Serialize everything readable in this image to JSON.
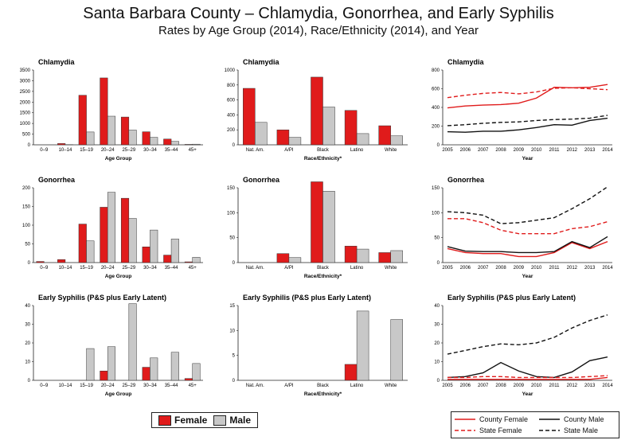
{
  "header": {
    "title": "Santa Barbara County – Chlamydia, Gonorrhea, and Early Syphilis",
    "subtitle": "Rates by Age Group (2014), Race/Ethnicity (2014), and Year"
  },
  "colors": {
    "female": "#e01b1b",
    "male": "#c8c8c8"
  },
  "legend_bars": {
    "female": "Female",
    "male": "Male"
  },
  "legend_lines": {
    "county_female": "County Female",
    "county_male": "County Male",
    "state_female": "State Female",
    "state_male": "State Male"
  },
  "chart_data": [
    {
      "type": "bar",
      "title": "Chlamydia",
      "xlabel": "Age Group",
      "ylim": [
        0,
        3500
      ],
      "yticks": [
        0,
        500,
        1000,
        1500,
        2000,
        2500,
        3000,
        3500
      ],
      "categories": [
        "0–9",
        "10–14",
        "15–19",
        "20–24",
        "25–29",
        "30–34",
        "35–44",
        "45+"
      ],
      "series": [
        {
          "name": "Female",
          "values": [
            0,
            60,
            2320,
            3130,
            1300,
            610,
            270,
            20
          ]
        },
        {
          "name": "Male",
          "values": [
            0,
            10,
            600,
            1340,
            690,
            350,
            160,
            30
          ]
        }
      ]
    },
    {
      "type": "bar",
      "title": "Chlamydia",
      "xlabel": "Race/Ethnicity*",
      "ylim": [
        0,
        1000
      ],
      "yticks": [
        0,
        200,
        400,
        600,
        800,
        1000
      ],
      "categories": [
        "Nat. Am.",
        "A/PI",
        "Black",
        "Latino",
        "White"
      ],
      "series": [
        {
          "name": "Female",
          "values": [
            755,
            200,
            905,
            460,
            255
          ]
        },
        {
          "name": "Male",
          "values": [
            300,
            100,
            505,
            150,
            120
          ]
        }
      ]
    },
    {
      "type": "line",
      "title": "Chlamydia",
      "xlabel": "Year",
      "ylim": [
        0,
        800
      ],
      "yticks": [
        0,
        200,
        400,
        600,
        800
      ],
      "x": [
        "2005",
        "2006",
        "2007",
        "2008",
        "2009",
        "2010",
        "2011",
        "2012",
        "2013",
        "2014"
      ],
      "series": [
        {
          "name": "County Female",
          "values": [
            395,
            415,
            425,
            430,
            445,
            500,
            615,
            610,
            615,
            645
          ]
        },
        {
          "name": "County Male",
          "values": [
            140,
            135,
            145,
            145,
            160,
            185,
            215,
            210,
            260,
            285
          ]
        },
        {
          "name": "State Female",
          "values": [
            505,
            530,
            550,
            560,
            545,
            565,
            605,
            610,
            600,
            590
          ]
        },
        {
          "name": "State Male",
          "values": [
            205,
            215,
            230,
            240,
            245,
            260,
            270,
            275,
            285,
            315
          ]
        }
      ]
    },
    {
      "type": "bar",
      "title": "Gonorrhea",
      "xlabel": "Age Group",
      "ylim": [
        0,
        200
      ],
      "yticks": [
        0,
        50,
        100,
        150,
        200
      ],
      "categories": [
        "0–9",
        "10–14",
        "15–19",
        "20–24",
        "25–29",
        "30–34",
        "35–44",
        "45+"
      ],
      "series": [
        {
          "name": "Female",
          "values": [
            3,
            8,
            103,
            148,
            172,
            42,
            20,
            2
          ]
        },
        {
          "name": "Male",
          "values": [
            0,
            0,
            58,
            188,
            118,
            87,
            63,
            14
          ]
        }
      ]
    },
    {
      "type": "bar",
      "title": "Gonorrhea",
      "xlabel": "Race/Ethnicity*",
      "ylim": [
        0,
        150
      ],
      "yticks": [
        0,
        50,
        100,
        150
      ],
      "categories": [
        "Nat. Am.",
        "A/PI",
        "Black",
        "Latino",
        "White"
      ],
      "series": [
        {
          "name": "Female",
          "values": [
            0,
            18,
            162,
            33,
            20
          ]
        },
        {
          "name": "Male",
          "values": [
            0,
            10,
            143,
            27,
            24
          ]
        }
      ]
    },
    {
      "type": "line",
      "title": "Gonorrhea",
      "xlabel": "Year",
      "ylim": [
        0,
        150
      ],
      "yticks": [
        0,
        50,
        100,
        150
      ],
      "x": [
        "2005",
        "2006",
        "2007",
        "2008",
        "2009",
        "2010",
        "2011",
        "2012",
        "2013",
        "2014"
      ],
      "series": [
        {
          "name": "County Female",
          "values": [
            28,
            20,
            18,
            18,
            12,
            12,
            20,
            40,
            28,
            42
          ]
        },
        {
          "name": "County Male",
          "values": [
            32,
            23,
            22,
            22,
            20,
            20,
            22,
            42,
            30,
            52
          ]
        },
        {
          "name": "State Female",
          "values": [
            88,
            88,
            80,
            65,
            58,
            58,
            58,
            68,
            72,
            82
          ]
        },
        {
          "name": "State Male",
          "values": [
            102,
            100,
            95,
            78,
            80,
            85,
            90,
            108,
            128,
            152
          ]
        }
      ]
    },
    {
      "type": "bar",
      "title": "Early Syphilis (P&S plus Early Latent)",
      "xlabel": "Age Group",
      "ylim": [
        0,
        40
      ],
      "yticks": [
        0,
        10,
        20,
        30,
        40
      ],
      "categories": [
        "0–9",
        "10–14",
        "15–19",
        "20–24",
        "25–29",
        "30–34",
        "35–44",
        "45+"
      ],
      "series": [
        {
          "name": "Female",
          "values": [
            0,
            0,
            0,
            5,
            0,
            7,
            0,
            1
          ]
        },
        {
          "name": "Male",
          "values": [
            0,
            0,
            17,
            18,
            41,
            12,
            15,
            9
          ]
        }
      ]
    },
    {
      "type": "bar",
      "title": "Early Syphilis (P&S plus Early Latent)",
      "xlabel": "Race/Ethnicity*",
      "ylim": [
        0,
        15
      ],
      "yticks": [
        0,
        5,
        10,
        15
      ],
      "categories": [
        "Nat. Am.",
        "A/PI",
        "Black",
        "Latino",
        "White"
      ],
      "series": [
        {
          "name": "Female",
          "values": [
            0,
            0,
            0,
            3.2,
            0
          ]
        },
        {
          "name": "Male",
          "values": [
            0,
            0,
            0,
            13.9,
            12.2
          ]
        }
      ]
    },
    {
      "type": "line",
      "title": "Early Syphilis (P&S plus Early Latent)",
      "xlabel": "Year",
      "ylim": [
        0,
        40
      ],
      "yticks": [
        0,
        10,
        20,
        30,
        40
      ],
      "x": [
        "2005",
        "2006",
        "2007",
        "2008",
        "2009",
        "2010",
        "2011",
        "2012",
        "2013",
        "2014"
      ],
      "series": [
        {
          "name": "County Female",
          "values": [
            0.5,
            0.5,
            0.5,
            0.5,
            0.5,
            0.5,
            0.5,
            0.5,
            0.5,
            1.5
          ]
        },
        {
          "name": "County Male",
          "values": [
            1.5,
            2,
            4,
            9.5,
            5,
            2,
            1.5,
            4.5,
            10.5,
            12.5
          ]
        },
        {
          "name": "State Female",
          "values": [
            1.5,
            1.5,
            2,
            2,
            1.5,
            1.5,
            1.5,
            1.5,
            2,
            2.5
          ]
        },
        {
          "name": "State Male",
          "values": [
            14,
            16,
            18,
            19.5,
            19,
            20,
            23,
            28,
            32,
            35
          ]
        }
      ]
    }
  ]
}
